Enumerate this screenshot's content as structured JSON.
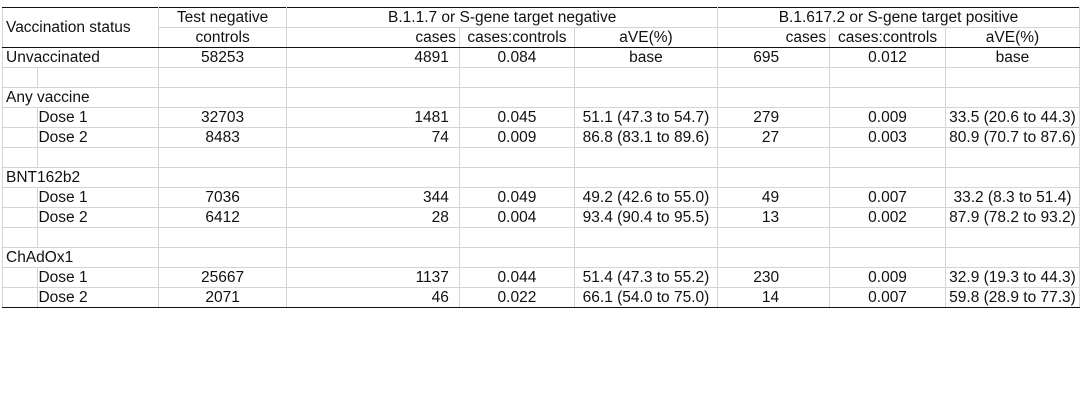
{
  "header": {
    "vaccination_status": "Vaccination status",
    "test_negative_line1": "Test negative",
    "test_negative_line2": "controls",
    "group_alpha": "B.1.1.7 or S-gene target negative",
    "group_delta": "B.1.617.2 or S-gene target positive",
    "sub_cases": "cases",
    "sub_ratio": "cases:controls",
    "sub_ave": "aVE(%)"
  },
  "rows": [
    {
      "type": "data",
      "label": "Unvaccinated",
      "indent": false,
      "controls": "58253",
      "a_cases": "4891",
      "a_ratio": "0.084",
      "a_ave": "base",
      "d_cases": "695",
      "d_ratio": "0.012",
      "d_ave": "base"
    },
    {
      "type": "blank"
    },
    {
      "type": "group",
      "label": "Any vaccine"
    },
    {
      "type": "data",
      "label": "Dose 1",
      "indent": true,
      "controls": "32703",
      "a_cases": "1481",
      "a_ratio": "0.045",
      "a_ave": "51.1 (47.3 to 54.7)",
      "d_cases": "279",
      "d_ratio": "0.009",
      "d_ave": "33.5 (20.6 to 44.3)"
    },
    {
      "type": "data",
      "label": "Dose 2",
      "indent": true,
      "controls": "8483",
      "a_cases": "74",
      "a_ratio": "0.009",
      "a_ave": "86.8 (83.1 to 89.6)",
      "d_cases": "27",
      "d_ratio": "0.003",
      "d_ave": "80.9 (70.7 to 87.6)"
    },
    {
      "type": "blank"
    },
    {
      "type": "group",
      "label": "BNT162b2"
    },
    {
      "type": "data",
      "label": "Dose 1",
      "indent": true,
      "controls": "7036",
      "a_cases": "344",
      "a_ratio": "0.049",
      "a_ave": "49.2 (42.6 to 55.0)",
      "d_cases": "49",
      "d_ratio": "0.007",
      "d_ave": "33.2 (8.3 to 51.4)"
    },
    {
      "type": "data",
      "label": "Dose 2",
      "indent": true,
      "controls": "6412",
      "a_cases": "28",
      "a_ratio": "0.004",
      "a_ave": "93.4 (90.4 to 95.5)",
      "d_cases": "13",
      "d_ratio": "0.002",
      "d_ave": "87.9 (78.2 to 93.2)"
    },
    {
      "type": "blank"
    },
    {
      "type": "group",
      "label": "ChAdOx1"
    },
    {
      "type": "data",
      "label": "Dose 1",
      "indent": true,
      "controls": "25667",
      "a_cases": "1137",
      "a_ratio": "0.044",
      "a_ave": "51.4 (47.3 to 55.2)",
      "d_cases": "230",
      "d_ratio": "0.009",
      "d_ave": "32.9 (19.3 to 44.3)"
    },
    {
      "type": "data",
      "label": "Dose 2",
      "indent": true,
      "controls": "2071",
      "a_cases": "46",
      "a_ratio": "0.022",
      "a_ave": "66.1 (54.0 to 75.0)",
      "d_cases": "14",
      "d_ratio": "0.007",
      "d_ave": "59.8 (28.9 to 77.3)"
    }
  ]
}
